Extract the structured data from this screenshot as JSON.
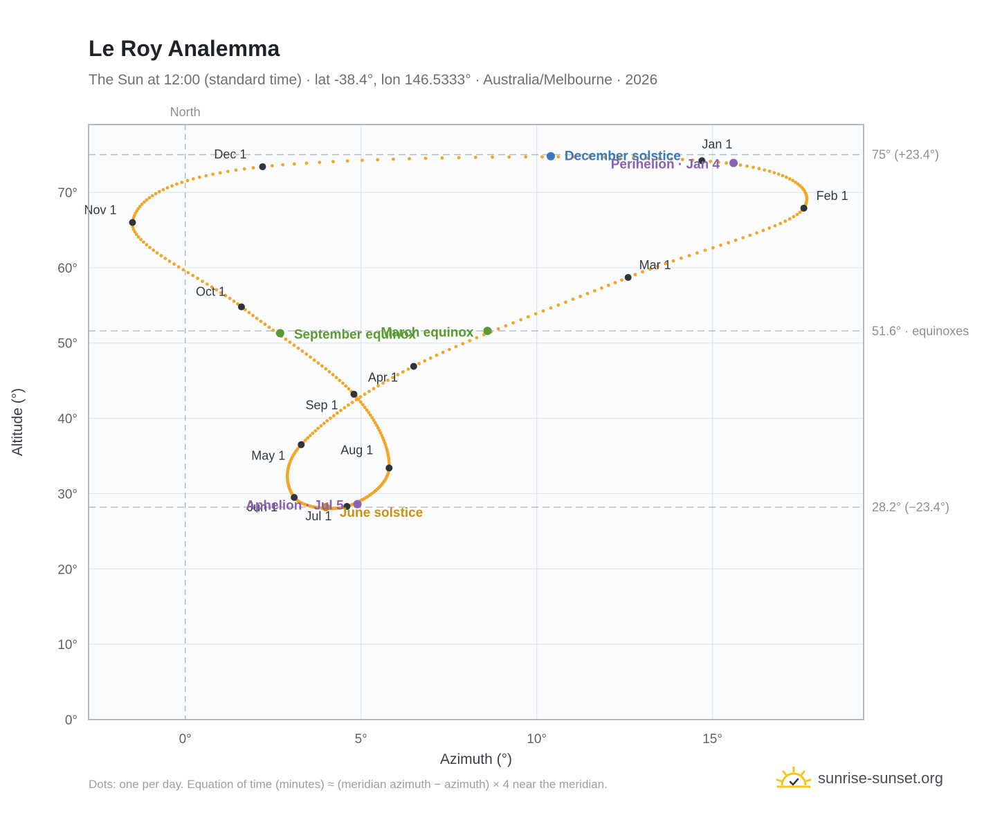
{
  "header": {
    "title": "Le Roy Analemma",
    "subtitle": "The Sun at 12:00 (standard time) · lat -38.4°, lon 146.5333° · Australia/Melbourne · 2026"
  },
  "footer": {
    "note": "Dots: one per day. Equation of time (minutes) ≈ (meridian azimuth − azimuth) × 4 near the meridian.",
    "brand": "sunrise-sunset.org"
  },
  "colors": {
    "curve": "#f2a628",
    "month_marker": "#2e343b",
    "december_solstice": "#3a78c0",
    "equinox": "#5a9a32",
    "june_solstice": "#c99314",
    "apsis": "#8a62b3",
    "plot_bg": "#f9fbfd",
    "grid": "#e2e6eb",
    "frame": "#9aa3ad",
    "refline": "#b5bcc4"
  },
  "chart_data": {
    "type": "scatter",
    "title": "Le Roy Analemma",
    "xlabel": "Azimuth (°)",
    "ylabel": "Altitude (°)",
    "xlim": [
      -2.75,
      19.3
    ],
    "ylim": [
      0,
      79
    ],
    "x_ticks": [
      {
        "value": 0,
        "label": "0°"
      },
      {
        "value": 5,
        "label": "5°"
      },
      {
        "value": 10,
        "label": "10°"
      },
      {
        "value": 15,
        "label": "15°"
      }
    ],
    "y_ticks": [
      {
        "value": 0,
        "label": "0°"
      },
      {
        "value": 10,
        "label": "10°"
      },
      {
        "value": 20,
        "label": "20°"
      },
      {
        "value": 30,
        "label": "30°"
      },
      {
        "value": 40,
        "label": "40°"
      },
      {
        "value": 50,
        "label": "50°"
      },
      {
        "value": 60,
        "label": "60°"
      },
      {
        "value": 70,
        "label": "70°"
      }
    ],
    "grid": true,
    "meridian": {
      "x": 0,
      "label": "North"
    },
    "reference_lines": [
      {
        "y": 75.0,
        "label": "75° (+23.4°)"
      },
      {
        "y": 51.6,
        "label": "51.6° · equinoxes"
      },
      {
        "y": 28.2,
        "label": "28.2° (−23.4°)"
      }
    ],
    "month_markers": [
      {
        "label": "Jan 1",
        "x": 14.7,
        "y": 74.2
      },
      {
        "label": "Feb 1",
        "x": 17.6,
        "y": 67.9
      },
      {
        "label": "Mar 1",
        "x": 12.6,
        "y": 58.7
      },
      {
        "label": "Apr 1",
        "x": 6.5,
        "y": 46.9
      },
      {
        "label": "May 1",
        "x": 3.3,
        "y": 36.5
      },
      {
        "label": "Jun 1",
        "x": 3.1,
        "y": 29.5
      },
      {
        "label": "Jul 1",
        "x": 4.6,
        "y": 28.3
      },
      {
        "label": "Aug 1",
        "x": 5.8,
        "y": 33.4
      },
      {
        "label": "Sep 1",
        "x": 4.8,
        "y": 43.2
      },
      {
        "label": "Oct 1",
        "x": 1.6,
        "y": 54.8
      },
      {
        "label": "Nov 1",
        "x": -1.5,
        "y": 66.0
      },
      {
        "label": "Dec 1",
        "x": 2.2,
        "y": 73.4
      }
    ],
    "events": [
      {
        "label": "December solstice",
        "x": 10.4,
        "y": 74.8,
        "kind": "december_solstice"
      },
      {
        "label": "Perihelion · Jan 4",
        "x": 15.6,
        "y": 73.9,
        "kind": "apsis"
      },
      {
        "label": "March equinox",
        "x": 8.6,
        "y": 51.6,
        "kind": "equinox"
      },
      {
        "label": "September equinox",
        "x": 2.7,
        "y": 51.3,
        "kind": "equinox"
      },
      {
        "label": "June solstice",
        "x": 4.0,
        "y": 28.2,
        "kind": "june_solstice"
      },
      {
        "label": "Aphelion · Jul 5",
        "x": 4.9,
        "y": 28.6,
        "kind": "apsis"
      }
    ]
  }
}
